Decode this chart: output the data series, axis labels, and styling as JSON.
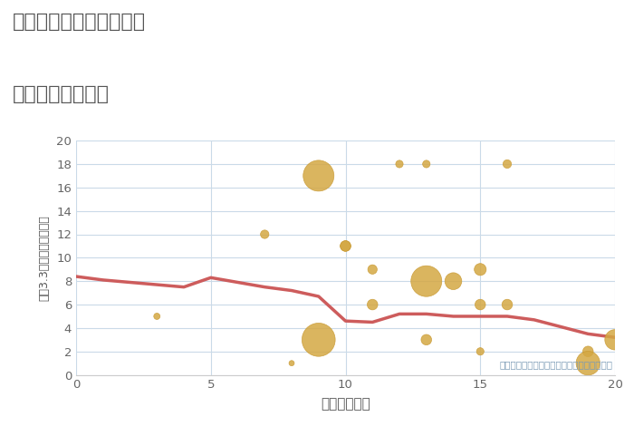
{
  "title_line1": "三重県伊賀市上野西町の",
  "title_line2": "駅距離別土地価格",
  "xlabel": "駅距離（分）",
  "ylabel": "坪（3.3㎡）単価（万円）",
  "annotation": "円の大きさは、取引のあった物件面積を示す",
  "scatter_x": [
    3,
    7,
    8,
    9,
    9,
    10,
    10,
    11,
    11,
    12,
    13,
    13,
    13,
    14,
    15,
    15,
    15,
    16,
    16,
    19,
    19,
    20
  ],
  "scatter_y": [
    5,
    12,
    1,
    17,
    3,
    11,
    11,
    6,
    9,
    18,
    18,
    3,
    8,
    8,
    6,
    9,
    2,
    6,
    18,
    2,
    1,
    3
  ],
  "scatter_size": [
    25,
    45,
    18,
    600,
    700,
    70,
    70,
    70,
    55,
    35,
    35,
    70,
    600,
    180,
    70,
    90,
    35,
    70,
    45,
    70,
    360,
    260
  ],
  "line_x": [
    0,
    1,
    2,
    3,
    4,
    5,
    6,
    7,
    8,
    9,
    10,
    11,
    12,
    13,
    14,
    15,
    16,
    17,
    18,
    19,
    20
  ],
  "line_y": [
    8.4,
    8.1,
    7.9,
    7.7,
    7.5,
    8.3,
    7.9,
    7.5,
    7.2,
    6.7,
    4.6,
    4.5,
    5.2,
    5.2,
    5.0,
    5.0,
    5.0,
    4.7,
    4.1,
    3.5,
    3.2
  ],
  "scatter_color": "#D4A843",
  "scatter_edge_color": "#C89830",
  "line_color": "#CD5C5C",
  "background_color": "#ffffff",
  "grid_color": "#CADAE8",
  "title_color": "#555555",
  "annotation_color": "#7a9ab5",
  "xlim": [
    0,
    20
  ],
  "ylim": [
    0,
    20
  ],
  "xticks": [
    0,
    5,
    10,
    15,
    20
  ],
  "yticks": [
    0,
    2,
    4,
    6,
    8,
    10,
    12,
    14,
    16,
    18,
    20
  ]
}
